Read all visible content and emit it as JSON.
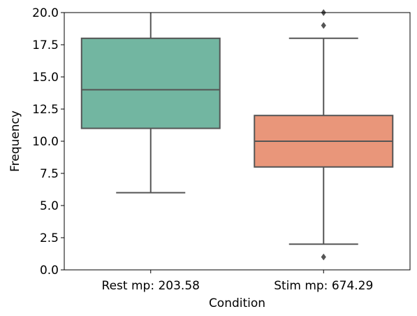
{
  "chart_data": {
    "type": "box",
    "title": "",
    "xlabel": "Condition",
    "ylabel": "Frequency",
    "ylim": [
      0,
      20
    ],
    "yticks": [
      0.0,
      2.5,
      5.0,
      7.5,
      10.0,
      12.5,
      15.0,
      17.5,
      20.0
    ],
    "ytick_labels": [
      "0.0",
      "2.5",
      "5.0",
      "7.5",
      "10.0",
      "12.5",
      "15.0",
      "17.5",
      "20.0"
    ],
    "grid": false,
    "categories": [
      "Rest mp: 203.58",
      "Stim mp: 674.29"
    ],
    "boxes": [
      {
        "category": "Rest mp: 203.58",
        "whisker_low": 6,
        "q1": 11,
        "median": 14,
        "q3": 18,
        "whisker_high": 20,
        "outliers": [],
        "color": "#72b6a1"
      },
      {
        "category": "Stim mp: 674.29",
        "whisker_low": 2,
        "q1": 8,
        "median": 10,
        "q3": 12,
        "whisker_high": 18,
        "outliers": [
          1,
          19,
          20
        ],
        "color": "#e9967a"
      }
    ],
    "line_color": "#555555"
  }
}
